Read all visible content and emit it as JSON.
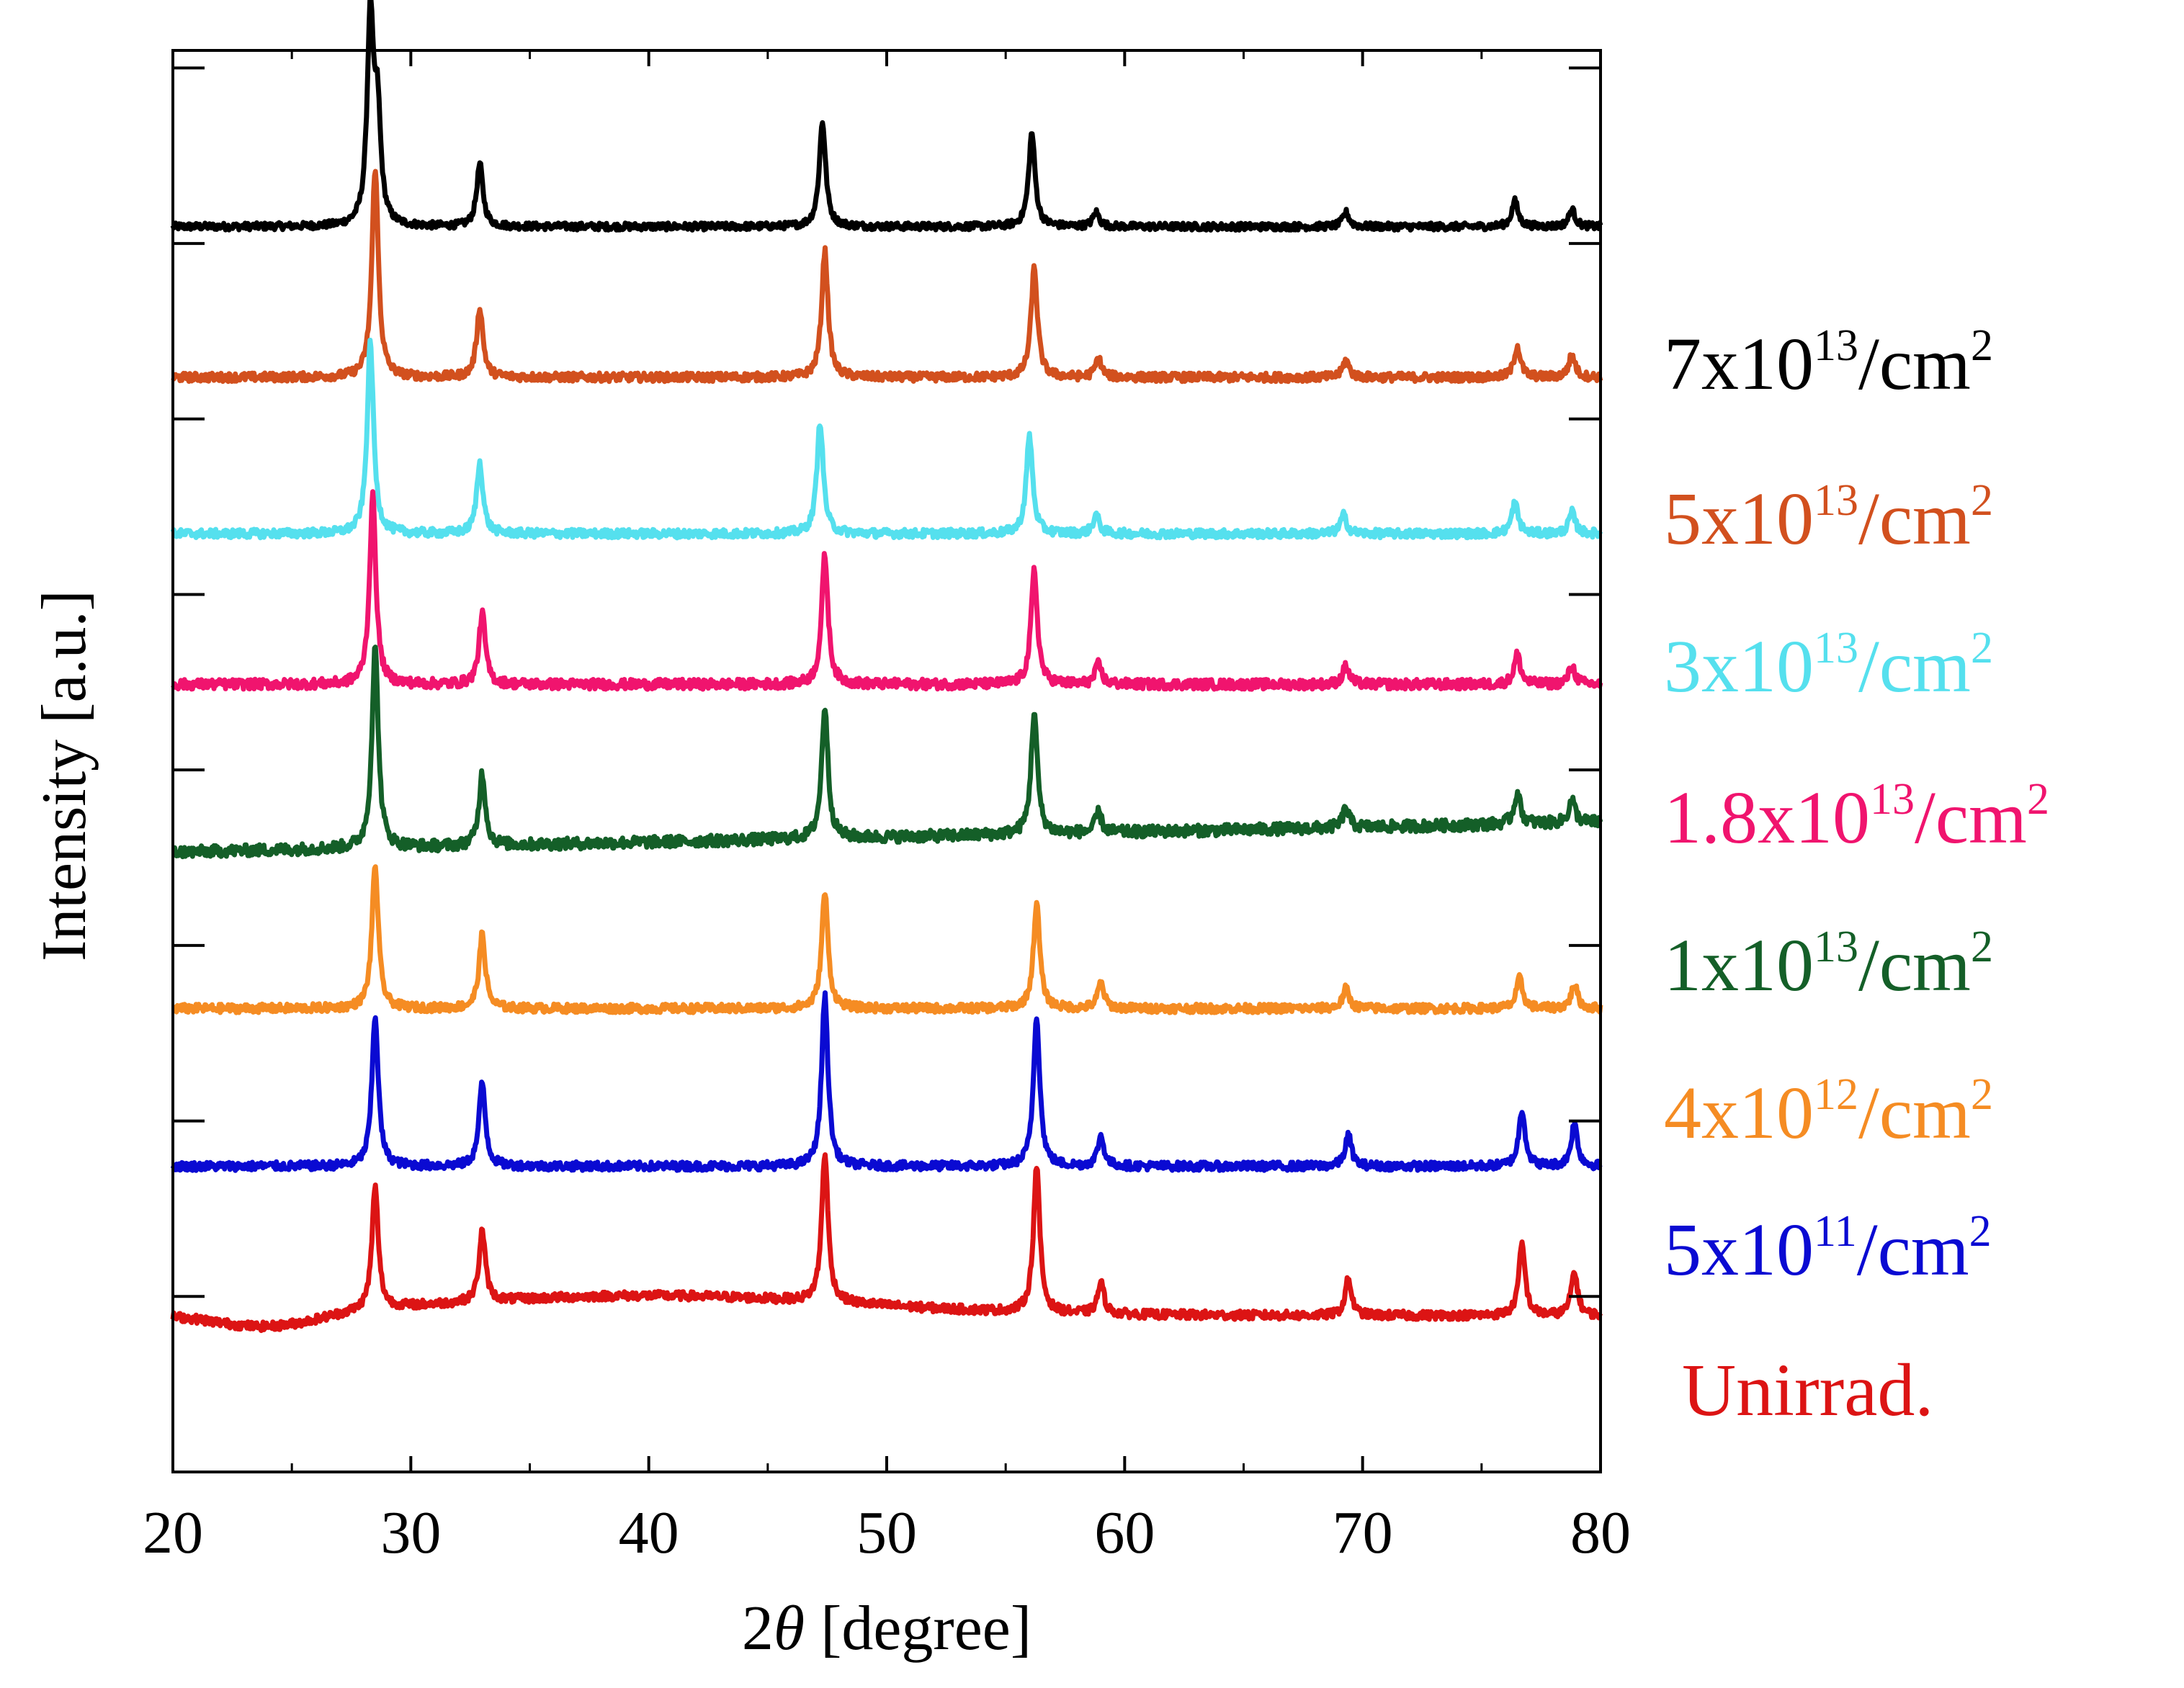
{
  "chart_data": {
    "type": "line",
    "title": "",
    "xlabel_prefix": "2",
    "xlabel_symbol": "θ",
    "xlabel_suffix": " [degree]",
    "ylabel": "Intensity [a.u.]",
    "xlim": [
      20,
      80
    ],
    "ylim": [
      0,
      100
    ],
    "x_ticks": [
      20,
      30,
      40,
      50,
      60,
      70,
      80
    ],
    "grid": false,
    "series": [
      {
        "name": "7x10^13/cm2",
        "label_base": "7x10",
        "label_exp": "13",
        "label_unit": "/cm",
        "label_unit_exp": "2",
        "color": "#000000",
        "baseline": 87.6,
        "noise": 0.25,
        "slope": 0.0,
        "peaks": [
          [
            28.3,
            14.5
          ],
          [
            28.6,
            7.5
          ],
          [
            32.9,
            4.4
          ],
          [
            47.3,
            7.4
          ],
          [
            56.1,
            6.6
          ],
          [
            58.8,
            1.0
          ],
          [
            69.3,
            1.0
          ],
          [
            76.4,
            1.8
          ],
          [
            78.8,
            1.2
          ]
        ]
      },
      {
        "name": "5x10^13/cm2",
        "label_base": "5x10",
        "label_exp": "13",
        "label_unit": "/cm",
        "label_unit_exp": "2",
        "color": "#D2501E",
        "baseline": 77.0,
        "noise": 0.3,
        "slope": 0.0,
        "peaks": [
          [
            28.5,
            14.8
          ],
          [
            32.9,
            4.9
          ],
          [
            47.4,
            8.9
          ],
          [
            56.2,
            7.7
          ],
          [
            58.9,
            1.3
          ],
          [
            69.3,
            1.2
          ],
          [
            76.5,
            2.2
          ],
          [
            78.8,
            1.6
          ]
        ]
      },
      {
        "name": "3x10^13/cm2",
        "label_base": "3x10",
        "label_exp": "13",
        "label_unit": "/cm",
        "label_unit_exp": "2",
        "color": "#55E0EE",
        "baseline": 66.0,
        "noise": 0.3,
        "slope": 0.0,
        "peaks": [
          [
            28.3,
            13.5
          ],
          [
            32.9,
            5.0
          ],
          [
            47.2,
            7.9
          ],
          [
            56.0,
            6.9
          ],
          [
            58.8,
            1.3
          ],
          [
            69.2,
            1.3
          ],
          [
            76.4,
            2.2
          ],
          [
            78.8,
            1.5
          ]
        ]
      },
      {
        "name": "1.8x10^13/cm2",
        "label_base": "1.8x10",
        "label_exp": "13",
        "label_unit": "/cm",
        "label_unit_exp": "2",
        "color": "#F0146E",
        "baseline": 55.4,
        "noise": 0.35,
        "slope": 0.0,
        "peaks": [
          [
            28.4,
            13.2
          ],
          [
            33.0,
            5.0
          ],
          [
            47.4,
            9.1
          ],
          [
            56.2,
            8.0
          ],
          [
            58.9,
            1.4
          ],
          [
            69.3,
            1.3
          ],
          [
            76.5,
            2.1
          ],
          [
            78.8,
            1.3
          ]
        ]
      },
      {
        "name": "1x10^13/cm2",
        "label_base": "1x10",
        "label_exp": "13",
        "label_unit": "/cm",
        "label_unit_exp": "2",
        "color": "#145F28",
        "baseline": 43.6,
        "noise": 0.4,
        "slope": 0.035,
        "peaks": [
          [
            28.5,
            14.1
          ],
          [
            33.0,
            5.1
          ],
          [
            47.4,
            9.3
          ],
          [
            56.2,
            8.6
          ],
          [
            58.9,
            1.4
          ],
          [
            69.3,
            1.4
          ],
          [
            76.5,
            2.2
          ],
          [
            78.8,
            1.6
          ]
        ]
      },
      {
        "name": "4x10^12/cm2",
        "label_base": "4x10",
        "label_exp": "12",
        "label_unit": "/cm",
        "label_unit_exp": "2",
        "color": "#F58C23",
        "baseline": 32.6,
        "noise": 0.3,
        "slope": 0.0,
        "peaks": [
          [
            28.5,
            10.1
          ],
          [
            33.0,
            5.2
          ],
          [
            47.4,
            8.2
          ],
          [
            56.3,
            7.4
          ],
          [
            59.0,
            1.8
          ],
          [
            69.3,
            1.4
          ],
          [
            76.6,
            2.1
          ],
          [
            78.9,
            1.7
          ]
        ]
      },
      {
        "name": "5x10^11/cm2",
        "label_base": "5x10",
        "label_exp": "11",
        "label_unit": "/cm",
        "label_unit_exp": "2",
        "color": "#0A0AD2",
        "baseline": 21.5,
        "noise": 0.3,
        "slope": 0.0,
        "peaks": [
          [
            28.5,
            10.6
          ],
          [
            33.0,
            5.9
          ],
          [
            47.4,
            12.0
          ],
          [
            56.3,
            10.6
          ],
          [
            59.0,
            2.1
          ],
          [
            69.4,
            2.2
          ],
          [
            76.7,
            4.0
          ],
          [
            78.9,
            3.0
          ]
        ]
      },
      {
        "name": "Unirrad.",
        "label_base": "Unirrad.",
        "label_exp": "",
        "label_unit": "",
        "label_unit_exp": "",
        "color": "#DC1414",
        "baseline": 11.0,
        "noise": 0.3,
        "slope": 0.0,
        "hump": 1.4,
        "peaks": [
          [
            28.5,
            8.6
          ],
          [
            33.0,
            5.0
          ],
          [
            47.4,
            10.5
          ],
          [
            56.3,
            10.3
          ],
          [
            59.0,
            2.2
          ],
          [
            69.4,
            2.6
          ],
          [
            76.7,
            5.0
          ],
          [
            78.9,
            3.1
          ]
        ]
      }
    ]
  }
}
